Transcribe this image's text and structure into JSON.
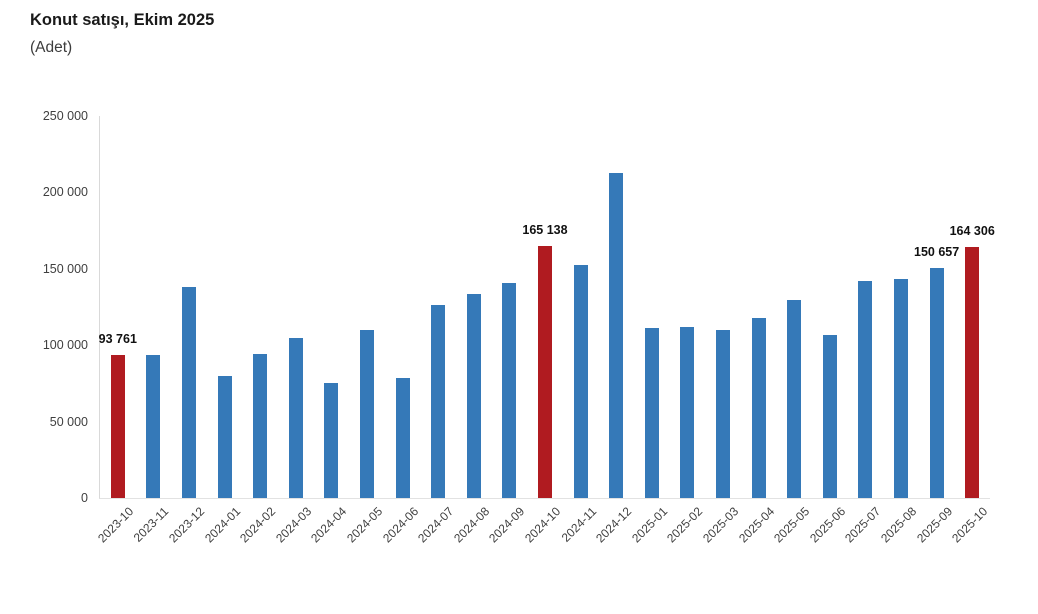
{
  "page": {
    "title": "Konut satışı, Ekim 2025",
    "subtitle": "(Adet)"
  },
  "colors": {
    "bar_default": "#3579B8",
    "bar_highlight": "#B01B20",
    "axis_line": "#D9D9D9",
    "tick_text": "#3F3F3F",
    "data_label_text": "#111111"
  },
  "chart_data": {
    "type": "bar",
    "title": "Konut satışı, Ekim 2025",
    "ylabel": "(Adet)",
    "xlabel": "",
    "ylim": [
      0,
      250000
    ],
    "ytick_values": [
      250000,
      200000,
      150000,
      100000,
      50000,
      0
    ],
    "ytick_labels": [
      "250 000",
      "200 000",
      "150 000",
      "100 000",
      "50 000",
      "0"
    ],
    "grid": false,
    "legend": "none",
    "categories": [
      "2023-10",
      "2023-11",
      "2023-12",
      "2024-01",
      "2024-02",
      "2024-03",
      "2024-04",
      "2024-05",
      "2024-06",
      "2024-07",
      "2024-08",
      "2024-09",
      "2024-10",
      "2024-11",
      "2024-12",
      "2025-01",
      "2025-02",
      "2025-03",
      "2025-04",
      "2025-05",
      "2025-06",
      "2025-07",
      "2025-08",
      "2025-09",
      "2025-10"
    ],
    "values": [
      93761,
      93500,
      138000,
      80000,
      94000,
      105000,
      75000,
      110000,
      78500,
      126500,
      133500,
      140500,
      165138,
      152500,
      212500,
      111000,
      112000,
      110000,
      118000,
      129500,
      107000,
      142000,
      143000,
      150657,
      164306
    ],
    "highlighted_indices": [
      0,
      12,
      24
    ],
    "data_labels": [
      {
        "index": 0,
        "text": "93 761"
      },
      {
        "index": 12,
        "text": "165 138"
      },
      {
        "index": 23,
        "text": "150 657"
      },
      {
        "index": 24,
        "text": "164 306"
      }
    ]
  }
}
